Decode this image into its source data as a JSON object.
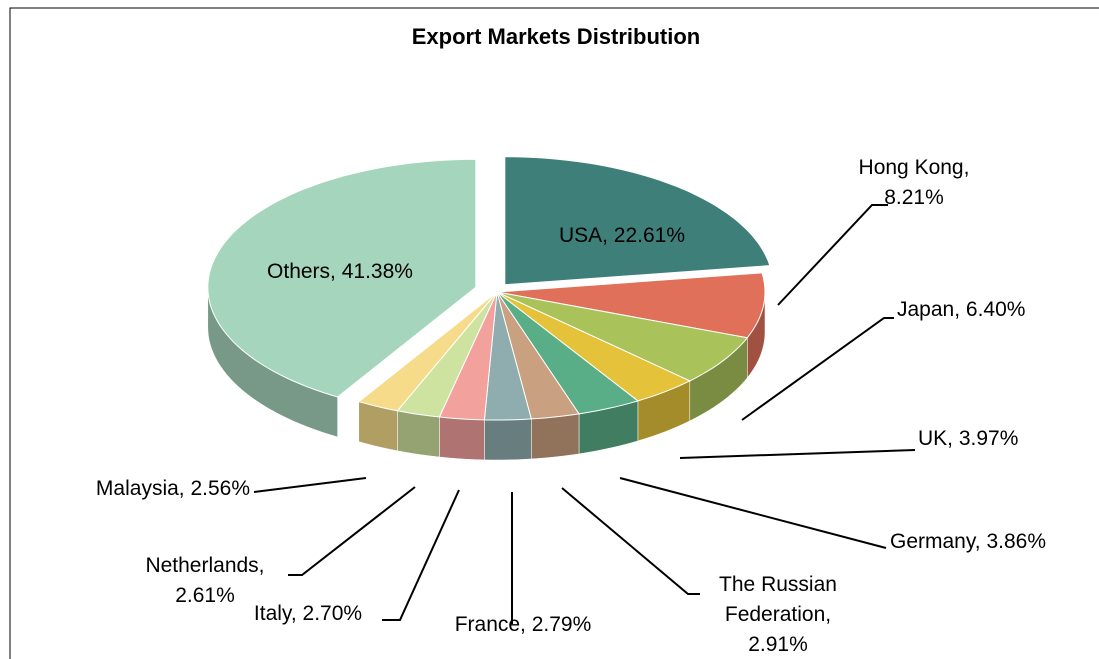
{
  "chart_data": {
    "type": "pie",
    "title": "Export Markets Distribution",
    "values": [
      22.61,
      8.21,
      6.4,
      3.97,
      3.86,
      2.91,
      2.79,
      2.7,
      2.61,
      2.56,
      41.38
    ],
    "value_labels": [
      "USA, 22.61%",
      "Hong Kong,\n8.21%",
      "Japan, 6.40%",
      "UK, 3.97%",
      "Germany, 3.86%",
      "The Russian\nFederation,\n2.91%",
      "France, 2.79%",
      "Italy, 2.70%",
      "Netherlands,\n2.61%",
      "Malaysia, 2.56%",
      "Others, 41.38%"
    ],
    "colors": [
      "#3f7f7a",
      "#e0705a",
      "#a9c25a",
      "#e4c23a",
      "#5aae87",
      "#c9a080",
      "#8fadaf",
      "#f3a19d",
      "#cfe3a0",
      "#f6dc8a",
      "#a6d5bd"
    ]
  }
}
